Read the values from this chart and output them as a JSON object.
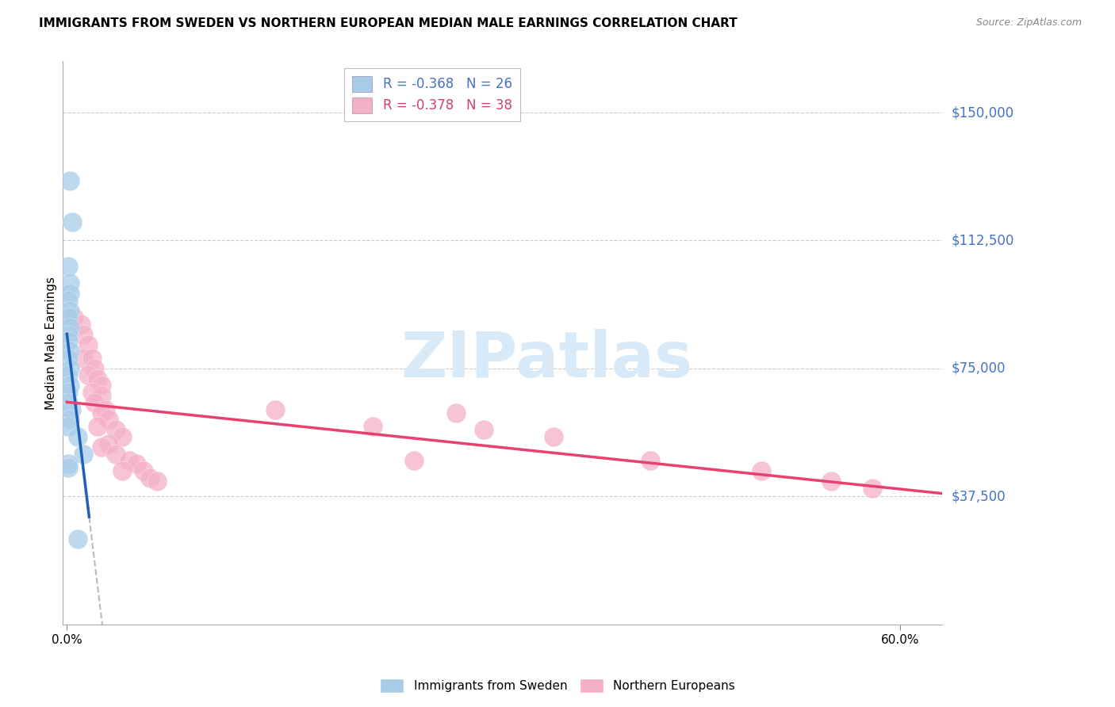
{
  "title": "IMMIGRANTS FROM SWEDEN VS NORTHERN EUROPEAN MEDIAN MALE EARNINGS CORRELATION CHART",
  "source": "Source: ZipAtlas.com",
  "ylabel": "Median Male Earnings",
  "y_ticks": [
    37500,
    75000,
    112500,
    150000
  ],
  "y_tick_labels": [
    "$37,500",
    "$75,000",
    "$112,500",
    "$150,000"
  ],
  "y_min": 0,
  "y_max": 165000,
  "x_min": -0.003,
  "x_max": 0.63,
  "blue_color": "#a8cce8",
  "pink_color": "#f4b0c8",
  "blue_line_color": "#2060b8",
  "pink_line_color": "#e84070",
  "dashed_line_color": "#b8b8c8",
  "blue_text_color": "#4472c4",
  "pink_text_color": "#d04070",
  "watermark_color": "#d8eaf8",
  "sweden_r": "-0.368",
  "sweden_n": "26",
  "ne_r": "-0.378",
  "ne_n": "38",
  "sweden_x": [
    0.002,
    0.004,
    0.001,
    0.002,
    0.002,
    0.001,
    0.002,
    0.001,
    0.002,
    0.001,
    0.001,
    0.002,
    0.001,
    0.002,
    0.001,
    0.002,
    0.001,
    0.001,
    0.003,
    0.002,
    0.001,
    0.008,
    0.012,
    0.001,
    0.001,
    0.008
  ],
  "sweden_y": [
    130000,
    118000,
    105000,
    100000,
    97000,
    95000,
    92000,
    90000,
    87000,
    85000,
    83000,
    80000,
    78000,
    75000,
    73000,
    70000,
    68000,
    65000,
    63000,
    60000,
    58000,
    55000,
    50000,
    47000,
    46000,
    25000
  ],
  "ne_x": [
    0.005,
    0.01,
    0.012,
    0.015,
    0.012,
    0.018,
    0.02,
    0.015,
    0.022,
    0.025,
    0.018,
    0.025,
    0.02,
    0.028,
    0.025,
    0.03,
    0.022,
    0.035,
    0.04,
    0.03,
    0.025,
    0.035,
    0.045,
    0.05,
    0.04,
    0.055,
    0.06,
    0.065,
    0.15,
    0.22,
    0.25,
    0.28,
    0.3,
    0.35,
    0.42,
    0.5,
    0.55,
    0.58
  ],
  "ne_y": [
    90000,
    88000,
    85000,
    82000,
    78000,
    78000,
    75000,
    73000,
    72000,
    70000,
    68000,
    67000,
    65000,
    63000,
    62000,
    60000,
    58000,
    57000,
    55000,
    53000,
    52000,
    50000,
    48000,
    47000,
    45000,
    45000,
    43000,
    42000,
    63000,
    58000,
    48000,
    62000,
    57000,
    55000,
    48000,
    45000,
    42000,
    40000
  ]
}
